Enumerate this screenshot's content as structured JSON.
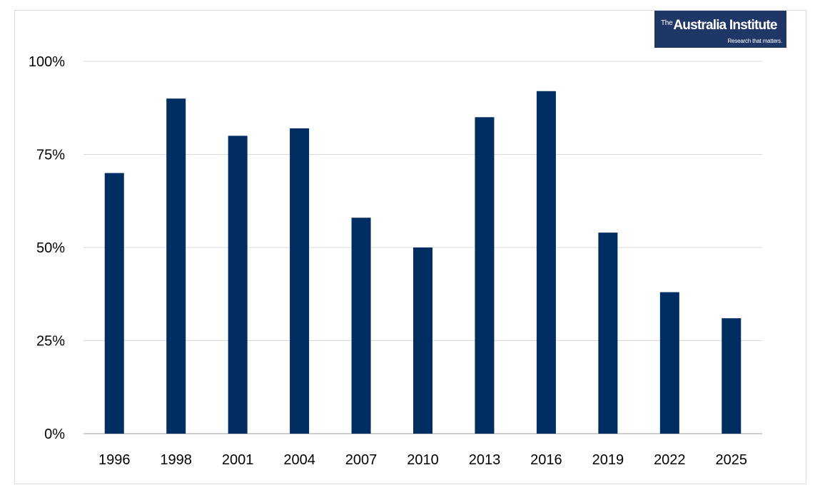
{
  "logo": {
    "the": "The",
    "name": "Australia Institute",
    "tagline": "Research that matters."
  },
  "chart_data": {
    "type": "bar",
    "title": "",
    "xlabel": "",
    "ylabel": "",
    "categories": [
      "1996",
      "1998",
      "2001",
      "2004",
      "2007",
      "2010",
      "2013",
      "2016",
      "2019",
      "2022",
      "2025"
    ],
    "values": [
      70,
      90,
      80,
      82,
      58,
      50,
      85,
      92,
      54,
      38,
      31
    ],
    "ylim": [
      0,
      100
    ],
    "yticks": [
      0,
      25,
      50,
      75,
      100
    ],
    "ytick_labels": [
      "0%",
      "25%",
      "50%",
      "75%",
      "100%"
    ],
    "grid": true,
    "legend": "none",
    "colors": {
      "bar": "#002d62",
      "grid": "#d9d9d9",
      "axis": "#bfbfbf",
      "logo_bg": "#1f3767"
    }
  }
}
